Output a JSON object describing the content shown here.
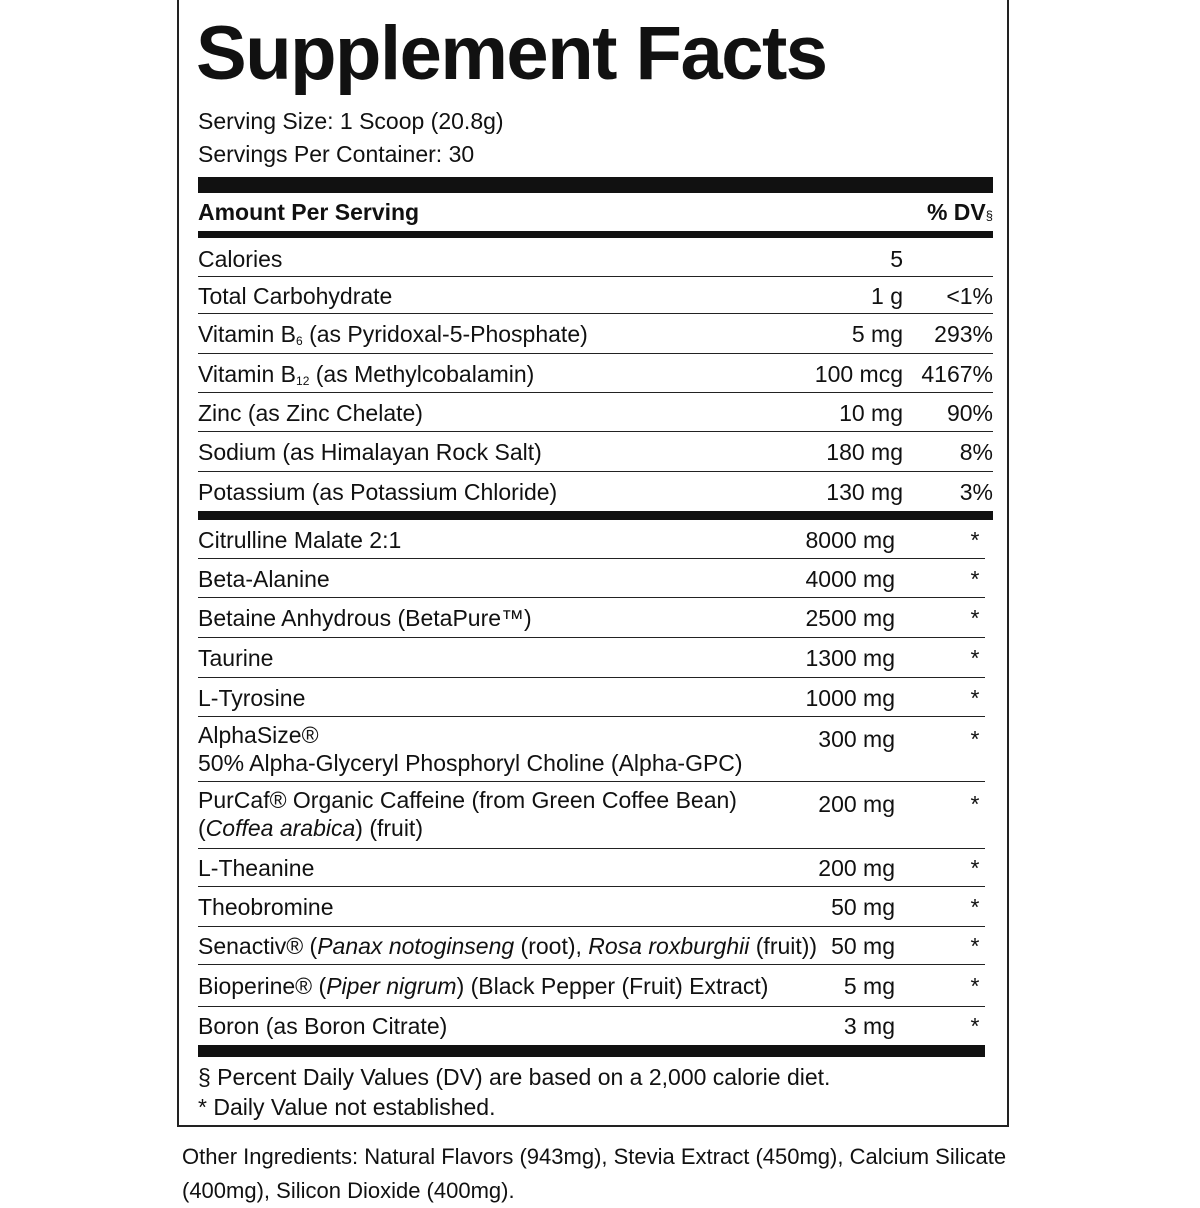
{
  "title": "Supplement Facts",
  "serving_size": "Serving Size: 1 Scoop (20.8g)",
  "servings_per_container": "Servings Per Container: 30",
  "header": {
    "amount": "Amount Per Serving",
    "dv": "% DV",
    "dv_mark": "§"
  },
  "nutrients": [
    {
      "name": [
        [
          {
            "text": "Calories"
          }
        ]
      ],
      "amount": "5"
    },
    {
      "name": [
        [
          {
            "text": "Total Carbohydrate"
          }
        ]
      ],
      "amount": "1 g",
      "dv": "<1%"
    },
    {
      "name": [
        [
          {
            "text": "Vitamin B"
          },
          {
            "text": "6",
            "sub": true
          },
          {
            "text": " (as Pyridoxal-5-Phosphate)"
          }
        ]
      ],
      "amount": "5 mg",
      "dv": "293%"
    },
    {
      "name": [
        [
          {
            "text": "Vitamin B"
          },
          {
            "text": "12",
            "sub": true
          },
          {
            "text": " (as Methylcobalamin)"
          }
        ]
      ],
      "amount": "100 mcg",
      "dv": "4167%"
    },
    {
      "name": [
        [
          {
            "text": "Zinc (as Zinc Chelate)"
          }
        ]
      ],
      "amount": "10 mg",
      "dv": "90%"
    },
    {
      "name": [
        [
          {
            "text": "Sodium (as Himalayan Rock Salt)"
          }
        ]
      ],
      "amount": "180 mg",
      "dv": "8%"
    },
    {
      "name": [
        [
          {
            "text": "Potassium (as Potassium Chloride)"
          }
        ]
      ],
      "amount": "130 mg",
      "dv": "3%"
    }
  ],
  "ingredients": [
    {
      "name": [
        [
          {
            "text": "Citrulline Malate 2:1"
          }
        ]
      ],
      "amount": "8000 mg",
      "dv": "*"
    },
    {
      "name": [
        [
          {
            "text": "Beta-Alanine"
          }
        ]
      ],
      "amount": "4000 mg",
      "dv": "*"
    },
    {
      "name": [
        [
          {
            "text": "Betaine Anhydrous (BetaPure™)"
          }
        ]
      ],
      "amount": "2500 mg",
      "dv": "*"
    },
    {
      "name": [
        [
          {
            "text": "Taurine"
          }
        ]
      ],
      "amount": "1300 mg",
      "dv": "*"
    },
    {
      "name": [
        [
          {
            "text": "L-Tyrosine"
          }
        ]
      ],
      "amount": "1000 mg",
      "dv": "*"
    },
    {
      "name": [
        [
          {
            "text": "AlphaSize®"
          }
        ],
        [
          {
            "text": "50% Alpha-Glyceryl Phosphoryl Choline (Alpha-GPC)"
          }
        ]
      ],
      "amount": "300 mg",
      "dv": "*"
    },
    {
      "name": [
        [
          {
            "text": "PurCaf® Organic Caffeine (from Green Coffee Bean)"
          }
        ],
        [
          {
            "text": "("
          },
          {
            "text": "Coffea arabica",
            "italic": true
          },
          {
            "text": ") (fruit)"
          }
        ]
      ],
      "amount": "200 mg",
      "dv": "*"
    },
    {
      "name": [
        [
          {
            "text": "L-Theanine"
          }
        ]
      ],
      "amount": "200 mg",
      "dv": "*"
    },
    {
      "name": [
        [
          {
            "text": "Theobromine"
          }
        ]
      ],
      "amount": "50 mg",
      "dv": "*"
    },
    {
      "name": [
        [
          {
            "text": "Senactiv® ("
          },
          {
            "text": "Panax notoginseng",
            "italic": true
          },
          {
            "text": " (root), "
          },
          {
            "text": "Rosa roxburghii",
            "italic": true
          },
          {
            "text": " (fruit))"
          }
        ]
      ],
      "amount": "50 mg",
      "dv": "*"
    },
    {
      "name": [
        [
          {
            "text": "Bioperine® ("
          },
          {
            "text": "Piper nigrum",
            "italic": true
          },
          {
            "text": ") (Black Pepper (Fruit) Extract)"
          }
        ]
      ],
      "amount": "5 mg",
      "dv": "*"
    },
    {
      "name": [
        [
          {
            "text": "Boron (as Boron Citrate)"
          }
        ]
      ],
      "amount": "3 mg",
      "dv": "*"
    }
  ],
  "footnotes": [
    "§ Percent Daily Values (DV) are based on a 2,000 calorie diet.",
    "* Daily Value not established."
  ],
  "other_ingredients": "Other Ingredients: Natural Flavors (943mg), Stevia Extract (450mg), Calcium Silicate (400mg), Silicon Dioxide (400mg)."
}
